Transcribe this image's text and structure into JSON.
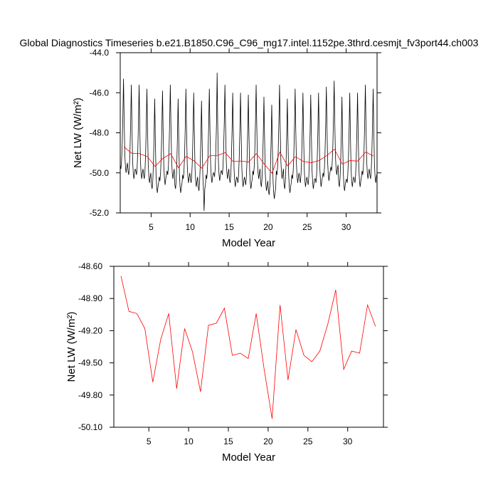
{
  "chart_data": [
    {
      "type": "line",
      "title": "Global Diagnostics Timeseries b.e21.B1850.C96_C96_mg17.intel.1152pe.3thrd.cesmjt_fv3port44.ch003",
      "xlabel": "Model Year",
      "ylabel": "Net LW (W/m²)",
      "xlim": [
        1.04,
        33.96
      ],
      "ylim": [
        -52.0,
        -44.0
      ],
      "xticks": [
        5,
        10,
        15,
        20,
        25,
        30
      ],
      "yticks": [
        {
          "value": -52.0,
          "label": "-52.0"
        },
        {
          "value": -50.0,
          "label": "-50.0"
        },
        {
          "value": -48.0,
          "label": "-48.0"
        },
        {
          "value": -46.0,
          "label": "-46.0"
        },
        {
          "value": -44.0,
          "label": "-44.0"
        }
      ],
      "series": [
        {
          "color": "#000000",
          "x": [
            1.04,
            1.13,
            1.21,
            1.29,
            1.38,
            1.46,
            1.54,
            1.63,
            1.71,
            1.79,
            1.88,
            1.96,
            2.04,
            2.13,
            2.21,
            2.29,
            2.38,
            2.46,
            2.54,
            2.63,
            2.71,
            2.79,
            2.88,
            2.96,
            3.04,
            3.13,
            3.21,
            3.29,
            3.38,
            3.46,
            3.54,
            3.63,
            3.71,
            3.79,
            3.88,
            3.96,
            4.04,
            4.13,
            4.21,
            4.29,
            4.38,
            4.46,
            4.54,
            4.63,
            4.71,
            4.79,
            4.88,
            4.96,
            5.04,
            5.13,
            5.21,
            5.29,
            5.38,
            5.46,
            5.54,
            5.63,
            5.71,
            5.79,
            5.88,
            5.96,
            6.04,
            6.13,
            6.21,
            6.29,
            6.38,
            6.46,
            6.54,
            6.63,
            6.71,
            6.79,
            6.88,
            6.96,
            7.04,
            7.13,
            7.21,
            7.29,
            7.38,
            7.46,
            7.54,
            7.63,
            7.71,
            7.79,
            7.88,
            7.96,
            8.04,
            8.13,
            8.21,
            8.29,
            8.38,
            8.46,
            8.54,
            8.63,
            8.71,
            8.79,
            8.88,
            8.96,
            9.04,
            9.13,
            9.21,
            9.29,
            9.38,
            9.46,
            9.54,
            9.63,
            9.71,
            9.79,
            9.88,
            9.96,
            10.04,
            10.13,
            10.21,
            10.29,
            10.38,
            10.46,
            10.54,
            10.63,
            10.71,
            10.79,
            10.88,
            10.96,
            11.04,
            11.13,
            11.21,
            11.29,
            11.38,
            11.46,
            11.54,
            11.63,
            11.71,
            11.79,
            11.88,
            11.96,
            12.04,
            12.13,
            12.21,
            12.29,
            12.38,
            12.46,
            12.54,
            12.63,
            12.71,
            12.79,
            12.88,
            12.96,
            13.04,
            13.13,
            13.21,
            13.29,
            13.38,
            13.46,
            13.54,
            13.63,
            13.71,
            13.79,
            13.88,
            13.96,
            14.04,
            14.13,
            14.21,
            14.29,
            14.38,
            14.46,
            14.54,
            14.63,
            14.71,
            14.79,
            14.88,
            14.96,
            15.04,
            15.13,
            15.21,
            15.29,
            15.38,
            15.46,
            15.54,
            15.63,
            15.71,
            15.79,
            15.88,
            15.96,
            16.04,
            16.13,
            16.21,
            16.29,
            16.38,
            16.46,
            16.54,
            16.63,
            16.71,
            16.79,
            16.88,
            16.96,
            17.04,
            17.13,
            17.21,
            17.29,
            17.38,
            17.46,
            17.54,
            17.63,
            17.71,
            17.79,
            17.88,
            17.96,
            18.04,
            18.13,
            18.21,
            18.29,
            18.38,
            18.46,
            18.54,
            18.63,
            18.71,
            18.79,
            18.88,
            18.96,
            19.04,
            19.13,
            19.21,
            19.29,
            19.38,
            19.46,
            19.54,
            19.63,
            19.71,
            19.79,
            19.88,
            19.96,
            20.04,
            20.13,
            20.21,
            20.29,
            20.38,
            20.46,
            20.54,
            20.63,
            20.71,
            20.79,
            20.88,
            20.96,
            21.04,
            21.13,
            21.21,
            21.29,
            21.38,
            21.46,
            21.54,
            21.63,
            21.71,
            21.79,
            21.88,
            21.96,
            22.04,
            22.13,
            22.21,
            22.29,
            22.38,
            22.46,
            22.54,
            22.63,
            22.71,
            22.79,
            22.88,
            22.96,
            23.04,
            23.13,
            23.21,
            23.29,
            23.38,
            23.46,
            23.54,
            23.63,
            23.71,
            23.79,
            23.88,
            23.96,
            24.04,
            24.13,
            24.21,
            24.29,
            24.38,
            24.46,
            24.54,
            24.63,
            24.71,
            24.79,
            24.88,
            24.96,
            25.04,
            25.13,
            25.21,
            25.29,
            25.38,
            25.46,
            25.54,
            25.63,
            25.71,
            25.79,
            25.88,
            25.96,
            26.04,
            26.13,
            26.21,
            26.29,
            26.38,
            26.46,
            26.54,
            26.63,
            26.71,
            26.79,
            26.88,
            26.96,
            27.04,
            27.13,
            27.21,
            27.29,
            27.38,
            27.46,
            27.54,
            27.63,
            27.71,
            27.79,
            27.88,
            27.96,
            28.04,
            28.13,
            28.21,
            28.29,
            28.38,
            28.46,
            28.54,
            28.63,
            28.71,
            28.79,
            28.88,
            28.96,
            29.04,
            29.13,
            29.21,
            29.29,
            29.38,
            29.46,
            29.54,
            29.63,
            29.71,
            29.79,
            29.88,
            29.96,
            30.04,
            30.13,
            30.21,
            30.29,
            30.38,
            30.46,
            30.54,
            30.63,
            30.71,
            30.79,
            30.88,
            30.96,
            31.04,
            31.13,
            31.21,
            31.29,
            31.38,
            31.46,
            31.54,
            31.63,
            31.71,
            31.79,
            31.88,
            31.96,
            32.04,
            32.13,
            32.21,
            32.29,
            32.38,
            32.46,
            32.54,
            32.63,
            32.71,
            32.79,
            32.88,
            32.96,
            33.04,
            33.13,
            33.21,
            33.29,
            33.38,
            33.46,
            33.54,
            33.63,
            33.71,
            33.79,
            33.88,
            33.96
          ],
          "values": [
            -49.6,
            -49.8,
            -49.4,
            -48.6,
            -47.1,
            -45.3,
            -47.3,
            -49.1,
            -49.7,
            -50.0,
            -49.7,
            -49.5,
            -49.9,
            -50.1,
            -49.7,
            -48.9,
            -47.4,
            -45.6,
            -47.6,
            -49.4,
            -50.0,
            -50.3,
            -50.0,
            -49.8,
            -49.9,
            -50.1,
            -49.7,
            -48.9,
            -47.4,
            -45.6,
            -47.6,
            -49.4,
            -50.0,
            -50.3,
            -50.0,
            -49.8,
            -50.1,
            -50.3,
            -49.9,
            -49.1,
            -47.6,
            -45.8,
            -47.8,
            -49.6,
            -50.2,
            -50.5,
            -50.2,
            -50.0,
            -50.6,
            -50.8,
            -50.4,
            -49.6,
            -48.1,
            -46.3,
            -48.3,
            -50.1,
            -50.7,
            -51.0,
            -50.7,
            -50.5,
            -50.2,
            -50.4,
            -50.0,
            -49.2,
            -47.7,
            -45.9,
            -47.9,
            -49.7,
            -50.3,
            -50.6,
            -50.3,
            -50.1,
            -49.9,
            -50.1,
            -49.7,
            -48.9,
            -47.4,
            -45.6,
            -47.6,
            -49.4,
            -50.0,
            -50.3,
            -50.0,
            -49.8,
            -50.6,
            -50.8,
            -50.4,
            -49.6,
            -48.1,
            -46.3,
            -48.3,
            -50.1,
            -50.7,
            -51.0,
            -50.7,
            -50.5,
            -50.1,
            -50.3,
            -49.9,
            -49.1,
            -47.6,
            -45.8,
            -47.8,
            -49.6,
            -50.2,
            -50.5,
            -50.2,
            -50.0,
            -50.3,
            -50.5,
            -50.1,
            -49.3,
            -47.8,
            -46.0,
            -48.0,
            -49.8,
            -50.4,
            -50.7,
            -50.4,
            -50.2,
            -50.7,
            -50.9,
            -50.5,
            -49.7,
            -48.2,
            -46.4,
            -48.4,
            -50.2,
            -50.8,
            -51.9,
            -50.8,
            -50.6,
            -50.1,
            -50.3,
            -49.9,
            -49.1,
            -47.6,
            -45.8,
            -47.8,
            -49.6,
            -50.2,
            -50.5,
            -50.2,
            -50.0,
            -50.0,
            -50.2,
            -49.8,
            -49.0,
            -47.5,
            -45.0,
            -47.7,
            -49.5,
            -50.1,
            -50.4,
            -50.1,
            -49.9,
            -49.9,
            -50.1,
            -49.7,
            -48.9,
            -47.4,
            -45.6,
            -47.6,
            -49.4,
            -50.0,
            -50.3,
            -50.0,
            -49.8,
            -50.3,
            -50.5,
            -50.1,
            -49.3,
            -47.8,
            -46.0,
            -48.0,
            -49.8,
            -50.4,
            -50.7,
            -50.4,
            -50.2,
            -50.3,
            -50.5,
            -50.1,
            -49.3,
            -47.8,
            -46.0,
            -48.0,
            -49.8,
            -50.4,
            -50.7,
            -50.4,
            -50.2,
            -50.4,
            -50.6,
            -50.2,
            -49.4,
            -47.9,
            -46.1,
            -48.1,
            -49.9,
            -50.5,
            -50.8,
            -50.5,
            -50.3,
            -49.9,
            -50.1,
            -49.7,
            -48.9,
            -47.4,
            -45.6,
            -47.6,
            -49.4,
            -50.0,
            -50.3,
            -50.0,
            -49.8,
            -50.5,
            -50.7,
            -50.3,
            -49.5,
            -48.0,
            -46.2,
            -48.2,
            -50.0,
            -50.6,
            -50.9,
            -50.6,
            -50.4,
            -50.9,
            -51.1,
            -50.7,
            -49.9,
            -48.4,
            -46.6,
            -48.6,
            -50.4,
            -51.0,
            -51.3,
            -51.0,
            -50.8,
            -49.9,
            -50.1,
            -49.7,
            -48.9,
            -47.4,
            -45.6,
            -47.6,
            -49.4,
            -50.0,
            -50.3,
            -50.0,
            -49.8,
            -50.6,
            -50.8,
            -50.4,
            -49.6,
            -48.1,
            -46.3,
            -48.3,
            -50.1,
            -50.7,
            -51.0,
            -50.7,
            -50.5,
            -50.1,
            -50.3,
            -49.9,
            -49.1,
            -47.6,
            -45.8,
            -47.8,
            -49.6,
            -50.2,
            -50.5,
            -50.2,
            -50.0,
            -50.3,
            -50.5,
            -50.1,
            -49.3,
            -47.8,
            -46.0,
            -48.0,
            -49.8,
            -50.4,
            -50.7,
            -50.4,
            -50.2,
            -50.4,
            -50.6,
            -50.2,
            -49.4,
            -47.9,
            -46.1,
            -48.1,
            -49.9,
            -50.5,
            -50.8,
            -50.5,
            -50.3,
            -50.3,
            -50.5,
            -50.1,
            -49.3,
            -47.8,
            -46.0,
            -48.0,
            -49.8,
            -50.4,
            -50.7,
            -50.4,
            -50.2,
            -50.0,
            -50.2,
            -49.8,
            -49.0,
            -47.5,
            -45.7,
            -47.7,
            -49.5,
            -50.1,
            -50.4,
            -50.1,
            -49.9,
            -49.7,
            -49.9,
            -49.5,
            -48.7,
            -47.2,
            -45.4,
            -47.4,
            -49.2,
            -49.8,
            -50.1,
            -49.8,
            -49.6,
            -50.5,
            -50.7,
            -50.3,
            -49.5,
            -48.0,
            -46.2,
            -48.2,
            -50.0,
            -50.6,
            -50.9,
            -50.6,
            -50.4,
            -50.3,
            -50.5,
            -50.1,
            -49.3,
            -47.8,
            -46.0,
            -48.0,
            -49.8,
            -50.4,
            -50.7,
            -50.4,
            -50.2,
            -50.3,
            -50.5,
            -50.1,
            -49.3,
            -47.8,
            -46.0,
            -48.0,
            -49.8,
            -50.4,
            -50.7,
            -50.4,
            -50.2,
            -49.9,
            -50.1,
            -49.7,
            -48.9,
            -47.4,
            -45.6,
            -47.6,
            -49.4,
            -50.0,
            -50.3,
            -50.0,
            -49.8,
            -50.1,
            -50.3,
            -49.9,
            -49.1,
            -47.6,
            -45.8,
            -47.8,
            -49.6,
            -50.2,
            -50.5,
            -50.2,
            -50.0
          ]
        },
        {
          "color": "#ff0000",
          "x": [
            1.5,
            2.5,
            3.5,
            4.5,
            5.5,
            6.5,
            7.5,
            8.5,
            9.5,
            10.5,
            11.5,
            12.5,
            13.5,
            14.5,
            15.5,
            16.5,
            17.5,
            18.5,
            19.5,
            20.5,
            21.5,
            22.5,
            23.5,
            24.5,
            25.5,
            26.5,
            27.5,
            28.5,
            29.5,
            30.5,
            31.5,
            32.5,
            33.5
          ],
          "values": [
            -48.69,
            -49.02,
            -49.04,
            -49.18,
            -49.68,
            -49.28,
            -49.04,
            -49.74,
            -49.18,
            -49.4,
            -49.77,
            -49.15,
            -49.13,
            -48.99,
            -49.43,
            -49.41,
            -49.46,
            -49.04,
            -49.56,
            -50.02,
            -48.96,
            -49.66,
            -49.19,
            -49.43,
            -49.49,
            -49.39,
            -49.14,
            -48.82,
            -49.56,
            -49.39,
            -49.41,
            -48.96,
            -49.16
          ]
        }
      ]
    },
    {
      "type": "line",
      "xlabel": "Model Year",
      "ylabel": "Net LW (W/m²)",
      "xlim": [
        0.6,
        34.5
      ],
      "ylim": [
        -50.1,
        -48.6
      ],
      "xticks": [
        5,
        10,
        15,
        20,
        25,
        30
      ],
      "yticks": [
        {
          "value": -50.1,
          "label": "-50.10"
        },
        {
          "value": -49.8,
          "label": "-49.80"
        },
        {
          "value": -49.5,
          "label": "-49.50"
        },
        {
          "value": -49.2,
          "label": "-49.20"
        },
        {
          "value": -48.9,
          "label": "-48.90"
        },
        {
          "value": -48.6,
          "label": "-48.60"
        }
      ],
      "series": [
        {
          "color": "#ff0000",
          "x": [
            1.5,
            2.5,
            3.5,
            4.5,
            5.5,
            6.5,
            7.5,
            8.5,
            9.5,
            10.5,
            11.5,
            12.5,
            13.5,
            14.5,
            15.5,
            16.5,
            17.5,
            18.5,
            19.5,
            20.5,
            21.5,
            22.5,
            23.5,
            24.5,
            25.5,
            26.5,
            27.5,
            28.5,
            29.5,
            30.5,
            31.5,
            32.5,
            33.5
          ],
          "values": [
            -48.69,
            -49.02,
            -49.04,
            -49.18,
            -49.68,
            -49.28,
            -49.04,
            -49.74,
            -49.18,
            -49.4,
            -49.77,
            -49.15,
            -49.13,
            -48.99,
            -49.43,
            -49.41,
            -49.46,
            -49.04,
            -49.56,
            -50.02,
            -48.96,
            -49.66,
            -49.19,
            -49.43,
            -49.49,
            -49.39,
            -49.14,
            -48.82,
            -49.56,
            -49.39,
            -49.41,
            -48.96,
            -49.16
          ]
        }
      ]
    }
  ]
}
